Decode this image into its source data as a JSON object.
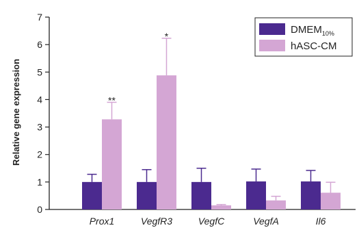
{
  "chart_data": {
    "type": "bar",
    "title": "",
    "ylabel": "Relative gene expression",
    "xlabel": "",
    "ylim": [
      0,
      7
    ],
    "yticks": [
      "0",
      "1",
      "2",
      "3",
      "4",
      "5",
      "6",
      "7"
    ],
    "categories": [
      "Prox1",
      "VegfR3",
      "VegfC",
      "VegfA",
      "Il6"
    ],
    "series": [
      {
        "name": "DMEM",
        "name_subscript": "10%",
        "color": "#4b2a8f",
        "values": [
          1.0,
          1.0,
          1.0,
          1.02,
          1.02
        ],
        "errors": [
          0.28,
          0.45,
          0.5,
          0.45,
          0.4
        ]
      },
      {
        "name": "hASC-CM",
        "color": "#d4a6d4",
        "values": [
          3.28,
          4.88,
          0.15,
          0.33,
          0.61
        ],
        "errors": [
          0.62,
          1.35,
          0.03,
          0.15,
          0.38
        ]
      }
    ],
    "annotations": [
      {
        "category": "Prox1",
        "series": "hASC-CM",
        "text": "**"
      },
      {
        "category": "VegfR3",
        "series": "hASC-CM",
        "text": "*"
      }
    ],
    "legend": "top-right",
    "grid": false
  }
}
